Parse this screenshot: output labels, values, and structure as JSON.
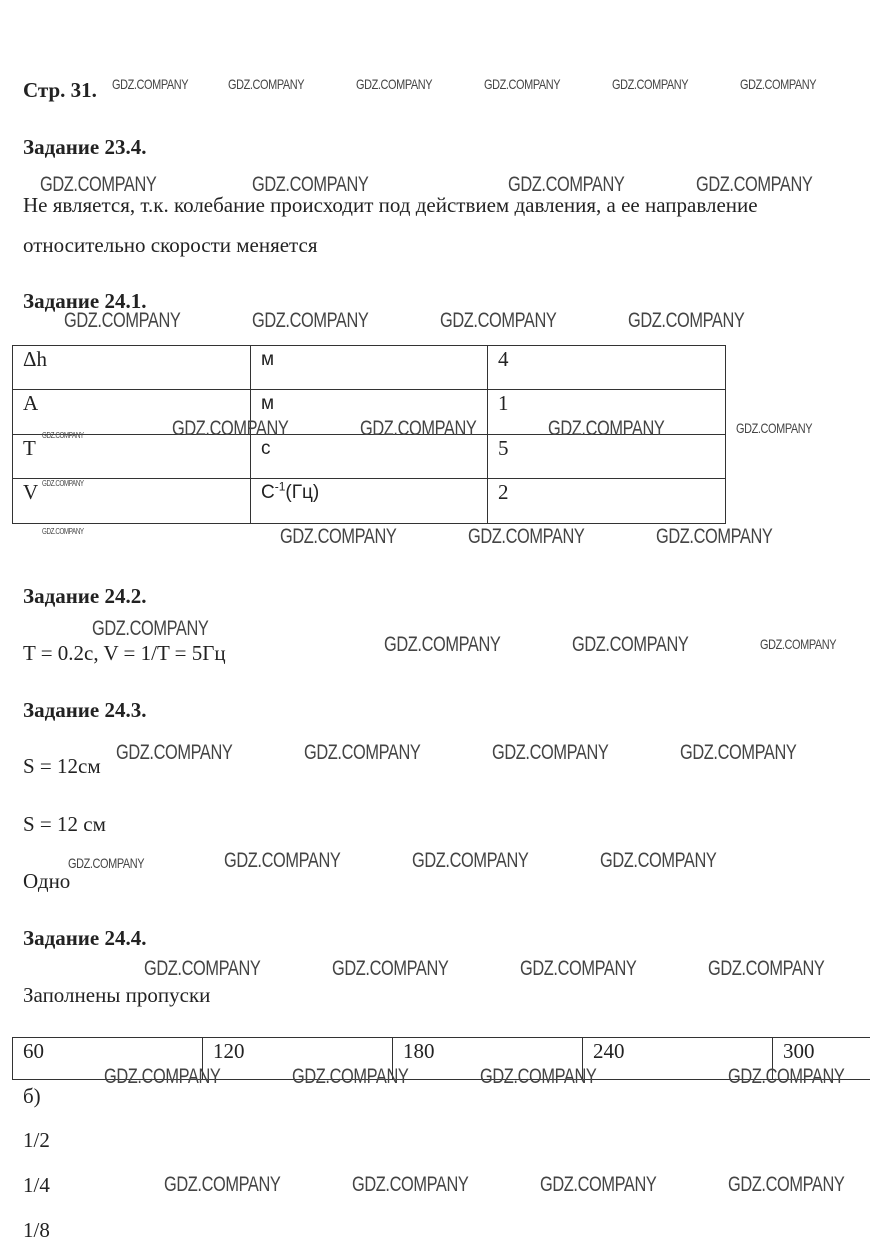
{
  "page_label": "Стр. 31.",
  "tasks": {
    "t23_4": {
      "title": "Задание 23.4.",
      "line1": "Не является, т.к. колебание происходит под действием давления, а ее направление",
      "line2": "относительно скорости меняется"
    },
    "t24_1": {
      "title": "Задание 24.1.",
      "table": [
        [
          "Δh",
          "м",
          "4"
        ],
        [
          "A",
          "м",
          "1"
        ],
        [
          "T",
          "с",
          "5"
        ],
        [
          "V",
          "С-1(Гц)",
          "2"
        ]
      ],
      "unit_base": "С",
      "unit_sup": "-1",
      "unit_rest": "(Гц)"
    },
    "t24_2": {
      "title": "Задание 24.2.",
      "line1": "T = 0.2c, V = 1/T = 5Гц"
    },
    "t24_3": {
      "title": "Задание 24.3.",
      "line1": "S = 12см",
      "line2": "S = 12 см",
      "line3": "Одно"
    },
    "t24_4": {
      "title": "Задание 24.4.",
      "line1": "Заполнены пропуски",
      "table": [
        "60",
        "120",
        "180",
        "240",
        "300"
      ],
      "b_label": "б)",
      "fractions": [
        "1/2",
        "1/4",
        "1/8"
      ]
    }
  },
  "watermark": "GDZ.COMPANY"
}
